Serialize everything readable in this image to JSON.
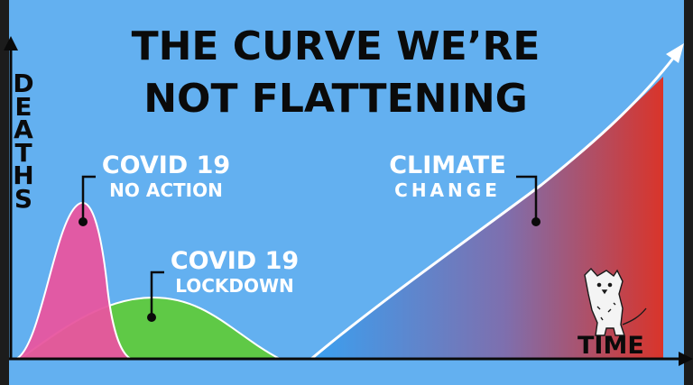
{
  "chart_data": {
    "type": "area",
    "title_line1": "THE CURVE WE’RE",
    "title_line2": "NOT FLATTENING",
    "ylabel": "DEATHS",
    "xlabel": "TIME",
    "series": [
      {
        "name_line1": "COVID 19",
        "name_line2": "NO ACTION",
        "color": "#e8559f",
        "shape": "tall narrow peak"
      },
      {
        "name_line1": "COVID 19",
        "name_line2": "LOCKDOWN",
        "color": "#5fc946",
        "shape": "low wide hump"
      },
      {
        "name_line1": "CLIMATE",
        "name_line2": "CHANGE",
        "color_start": "#3aa0f0",
        "color_end": "#d9342a",
        "shape": "exponential rise"
      }
    ],
    "axes": {
      "x_arrow": true,
      "y_arrow": true,
      "ticks": false,
      "grid": false
    },
    "illustration": "dog-icon"
  }
}
